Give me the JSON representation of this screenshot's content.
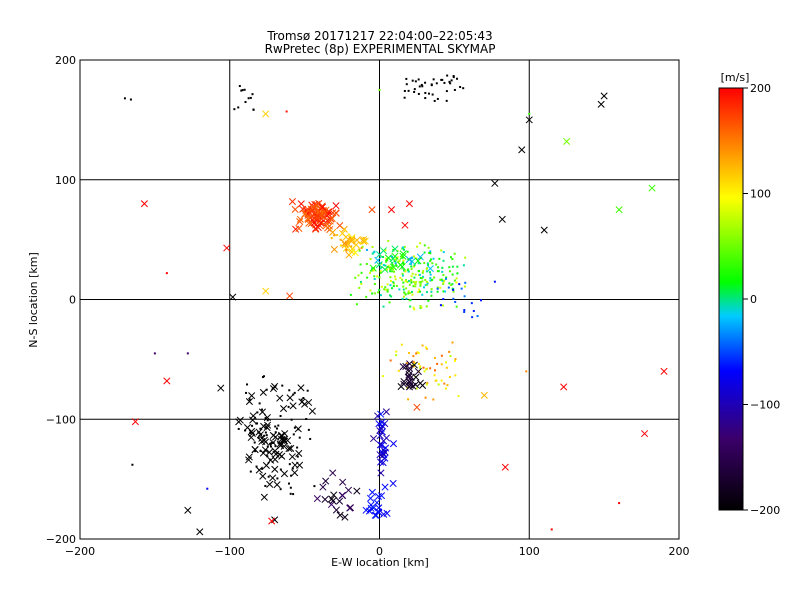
{
  "chart_data": {
    "type": "scatter",
    "title": "Tromsø 20171217 22:04:00–22:05:43",
    "subtitle": "RwPretec (8p) EXPERIMENTAL SKYMAP",
    "xlabel": "E-W location [km]",
    "ylabel": "N-S location [km]",
    "xlim": [
      -200,
      200
    ],
    "ylim": [
      -200,
      200
    ],
    "grid": true,
    "x_ticks": [
      -200,
      -100,
      0,
      100,
      200
    ],
    "y_ticks": [
      -200,
      -100,
      0,
      100,
      200
    ],
    "x_tick_labels": [
      "−200",
      "−100",
      "0",
      "100",
      "200"
    ],
    "y_tick_labels": [
      "200",
      "100",
      "0",
      "−100",
      "−200"
    ],
    "colorbar": {
      "label": "[m/s]",
      "min": -200,
      "max": 200,
      "ticks": [
        200,
        100,
        0,
        -100,
        -200
      ],
      "tick_labels": [
        "200",
        "100",
        "0",
        "−100",
        "−200"
      ],
      "colormap": [
        "#000000",
        "#3b006b",
        "#0000ff",
        "#00ccff",
        "#00ff00",
        "#ffff00",
        "#ff0000"
      ],
      "placement": "right"
    },
    "markers": [
      {
        "symbol": "x",
        "description": "large cross"
      },
      {
        "symbol": "+",
        "description": "small point"
      }
    ],
    "clusters": [
      {
        "x": [
          -60,
          -25
        ],
        "y": [
          55,
          85
        ],
        "v": [
          150,
          200
        ],
        "n": 90,
        "marker": "x"
      },
      {
        "x": [
          -35,
          -5
        ],
        "y": [
          35,
          60
        ],
        "v": [
          90,
          140
        ],
        "n": 40,
        "marker": "mix"
      },
      {
        "x": [
          -20,
          60
        ],
        "y": [
          -10,
          50
        ],
        "v": [
          -30,
          90
        ],
        "n": 260,
        "marker": "+"
      },
      {
        "x": [
          -10,
          40
        ],
        "y": [
          20,
          45
        ],
        "v": [
          -50,
          20
        ],
        "n": 40,
        "marker": "mix"
      },
      {
        "x": [
          0,
          60
        ],
        "y": [
          -90,
          -30
        ],
        "v": [
          60,
          160
        ],
        "n": 60,
        "marker": "+"
      },
      {
        "x": [
          10,
          30
        ],
        "y": [
          -85,
          -50
        ],
        "v": [
          -200,
          -170
        ],
        "n": 25,
        "marker": "x"
      },
      {
        "x": [
          -100,
          -40
        ],
        "y": [
          -170,
          -60
        ],
        "v": [
          -200,
          -200
        ],
        "n": 150,
        "marker": "mix"
      },
      {
        "x": [
          -50,
          -10
        ],
        "y": [
          -190,
          -140
        ],
        "v": [
          -200,
          -150
        ],
        "n": 20,
        "marker": "x"
      },
      {
        "x": [
          -5,
          10
        ],
        "y": [
          -150,
          -90
        ],
        "v": [
          -140,
          -100
        ],
        "n": 30,
        "marker": "x"
      },
      {
        "x": [
          -10,
          10
        ],
        "y": [
          -185,
          -150
        ],
        "v": [
          -115,
          -100
        ],
        "n": 20,
        "marker": "x"
      },
      {
        "x": [
          10,
          60
        ],
        "y": [
          165,
          190
        ],
        "v": [
          -200,
          -200
        ],
        "n": 40,
        "marker": "+"
      },
      {
        "x": [
          -100,
          -80
        ],
        "y": [
          155,
          185
        ],
        "v": [
          -200,
          -200
        ],
        "n": 12,
        "marker": "+"
      },
      {
        "x": [
          30,
          80
        ],
        "y": [
          -20,
          20
        ],
        "v": [
          -110,
          -60
        ],
        "n": 20,
        "marker": "+"
      }
    ],
    "points": [
      {
        "x": -157,
        "y": 80,
        "v": 200,
        "m": "x"
      },
      {
        "x": -102,
        "y": 43,
        "v": 200,
        "m": "x"
      },
      {
        "x": -76,
        "y": 155,
        "v": 110,
        "m": "x"
      },
      {
        "x": -62,
        "y": 157,
        "v": 190,
        "m": "+"
      },
      {
        "x": 0,
        "y": 175,
        "v": 40,
        "m": "+"
      },
      {
        "x": 100,
        "y": 150,
        "v": -200,
        "m": "x"
      },
      {
        "x": 148,
        "y": 163,
        "v": -200,
        "m": "x"
      },
      {
        "x": 150,
        "y": 170,
        "v": -200,
        "m": "x"
      },
      {
        "x": 100,
        "y": 155,
        "v": 20,
        "m": "+"
      },
      {
        "x": 125,
        "y": 132,
        "v": 40,
        "m": "x"
      },
      {
        "x": 160,
        "y": 75,
        "v": 20,
        "m": "x"
      },
      {
        "x": 182,
        "y": 93,
        "v": 20,
        "m": "x"
      },
      {
        "x": 110,
        "y": 58,
        "v": -200,
        "m": "x"
      },
      {
        "x": 82,
        "y": 67,
        "v": -200,
        "m": "x"
      },
      {
        "x": 77,
        "y": 97,
        "v": -200,
        "m": "x"
      },
      {
        "x": 95,
        "y": 125,
        "v": -200,
        "m": "x"
      },
      {
        "x": 98,
        "y": -60,
        "v": 140,
        "m": "+"
      },
      {
        "x": 84,
        "y": -140,
        "v": 200,
        "m": "x"
      },
      {
        "x": 123,
        "y": -73,
        "v": 200,
        "m": "x"
      },
      {
        "x": 177,
        "y": -112,
        "v": 200,
        "m": "x"
      },
      {
        "x": 190,
        "y": -60,
        "v": 200,
        "m": "x"
      },
      {
        "x": 160,
        "y": -170,
        "v": 200,
        "m": "+"
      },
      {
        "x": 115,
        "y": -192,
        "v": 200,
        "m": "+"
      },
      {
        "x": -142,
        "y": -68,
        "v": 200,
        "m": "x"
      },
      {
        "x": -163,
        "y": -102,
        "v": 200,
        "m": "x"
      },
      {
        "x": -142,
        "y": 22,
        "v": 200,
        "m": "+"
      },
      {
        "x": -150,
        "y": -45,
        "v": -150,
        "m": "+"
      },
      {
        "x": -128,
        "y": -45,
        "v": -150,
        "m": "+"
      },
      {
        "x": -166,
        "y": 167,
        "v": -200,
        "m": "+"
      },
      {
        "x": -165,
        "y": -138,
        "v": -200,
        "m": "+"
      },
      {
        "x": -128,
        "y": -176,
        "v": -200,
        "m": "x"
      },
      {
        "x": -120,
        "y": -194,
        "v": -200,
        "m": "x"
      },
      {
        "x": -98,
        "y": 2,
        "v": -200,
        "m": "x"
      },
      {
        "x": -76,
        "y": 7,
        "v": 110,
        "m": "x"
      },
      {
        "x": -106,
        "y": -74,
        "v": -200,
        "m": "x"
      },
      {
        "x": -74,
        "y": -148,
        "v": -200,
        "m": "+"
      },
      {
        "x": -70,
        "y": -184,
        "v": -200,
        "m": "x"
      },
      {
        "x": -72,
        "y": -185,
        "v": 200,
        "m": "x"
      },
      {
        "x": 17,
        "y": 62,
        "v": 200,
        "m": "x"
      },
      {
        "x": 20,
        "y": 80,
        "v": 200,
        "m": "x"
      },
      {
        "x": 8,
        "y": 75,
        "v": 200,
        "m": "x"
      },
      {
        "x": -5,
        "y": 75,
        "v": 170,
        "m": "x"
      },
      {
        "x": 25,
        "y": -90,
        "v": 170,
        "m": "x"
      },
      {
        "x": 70,
        "y": -80,
        "v": 120,
        "m": "x"
      },
      {
        "x": -170,
        "y": 168,
        "v": -200,
        "m": "+"
      },
      {
        "x": -115,
        "y": -158,
        "v": -110,
        "m": "+"
      },
      {
        "x": -60,
        "y": 3,
        "v": 170,
        "m": "x"
      }
    ]
  }
}
